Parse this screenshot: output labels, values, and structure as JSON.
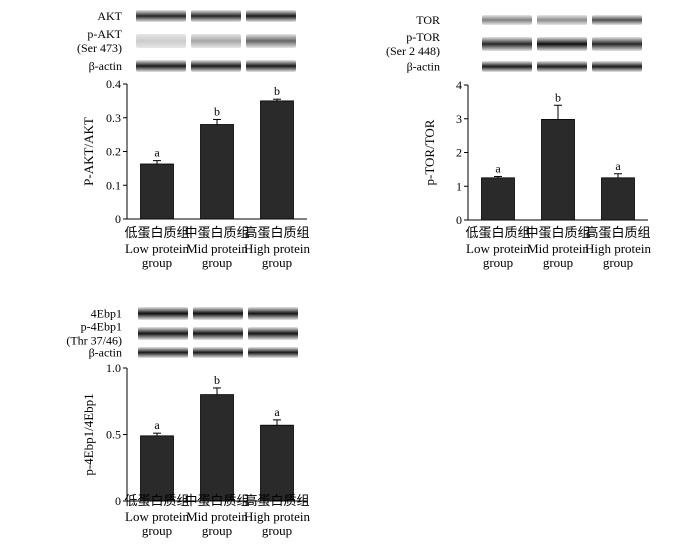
{
  "chart_data": [
    {
      "type": "bar",
      "ylabel": "P-AKT/AKT",
      "ylim": [
        0,
        0.4
      ],
      "yticks": [
        "0",
        "0.1",
        "0.2",
        "0.3",
        "0.4"
      ],
      "categories": [
        {
          "cn": "低蛋白质组",
          "en1": "Low protein",
          "en2": "group"
        },
        {
          "cn": "中蛋白质组",
          "en1": "Mid protein",
          "en2": "group"
        },
        {
          "cn": "高蛋白质组",
          "en1": "High protein",
          "en2": "group"
        }
      ],
      "values": [
        0.163,
        0.28,
        0.35
      ],
      "errors": [
        0.01,
        0.015,
        0.005
      ],
      "significance": [
        "a",
        "b",
        "b"
      ],
      "blots": [
        {
          "label": [
            "AKT"
          ],
          "intensity": [
            0.85,
            0.85,
            0.9
          ]
        },
        {
          "label": [
            "p-AKT",
            "(Ser 473)"
          ],
          "intensity": [
            0.2,
            0.35,
            0.6
          ]
        },
        {
          "label": [
            "β-actin"
          ],
          "intensity": [
            0.9,
            0.9,
            0.9
          ]
        }
      ],
      "bar_color": "#2a2a2a"
    },
    {
      "type": "bar",
      "ylabel": "p-TOR/TOR",
      "ylim": [
        0,
        4
      ],
      "yticks": [
        "0",
        "1",
        "2",
        "3",
        "4"
      ],
      "categories": [
        {
          "cn": "低蛋白质组",
          "en1": "Low protein",
          "en2": "group"
        },
        {
          "cn": "中蛋白质组",
          "en1": "Mid protein",
          "en2": "group"
        },
        {
          "cn": "高蛋白质组",
          "en1": "High protein",
          "en2": "group"
        }
      ],
      "values": [
        1.25,
        2.98,
        1.25
      ],
      "errors": [
        0.04,
        0.42,
        0.12
      ],
      "significance": [
        "a",
        "b",
        "a"
      ],
      "blots": [
        {
          "label": [
            "TOR"
          ],
          "intensity": [
            0.5,
            0.45,
            0.7
          ]
        },
        {
          "label": [
            "p-TOR",
            "(Ser 2 448)"
          ],
          "intensity": [
            0.85,
            0.95,
            0.85
          ]
        },
        {
          "label": [
            "β-actin"
          ],
          "intensity": [
            0.9,
            0.9,
            0.9
          ]
        }
      ],
      "bar_color": "#2a2a2a"
    },
    {
      "type": "bar",
      "ylabel": "p-4Ebp1/4Ebp1",
      "ylim": [
        0,
        1.0
      ],
      "yticks": [
        "0",
        "0.5",
        "1.0"
      ],
      "categories": [
        {
          "cn": "低蛋白质组",
          "en1": "Low protein",
          "en2": "group"
        },
        {
          "cn": "中蛋白质组",
          "en1": "Mid protein",
          "en2": "group"
        },
        {
          "cn": "高蛋白质组",
          "en1": "High protein",
          "en2": "group"
        }
      ],
      "values": [
        0.49,
        0.8,
        0.57
      ],
      "errors": [
        0.02,
        0.05,
        0.04
      ],
      "significance": [
        "a",
        "b",
        "a"
      ],
      "blots": [
        {
          "label": [
            "4Ebp1"
          ],
          "intensity": [
            0.95,
            0.95,
            0.92
          ]
        },
        {
          "label": [
            "p-4Ebp1",
            "(Thr 37/46)"
          ],
          "intensity": [
            0.92,
            0.92,
            0.92
          ]
        },
        {
          "label": [
            "β-actin"
          ],
          "intensity": [
            0.9,
            0.9,
            0.9
          ]
        }
      ],
      "bar_color": "#2a2a2a"
    }
  ]
}
